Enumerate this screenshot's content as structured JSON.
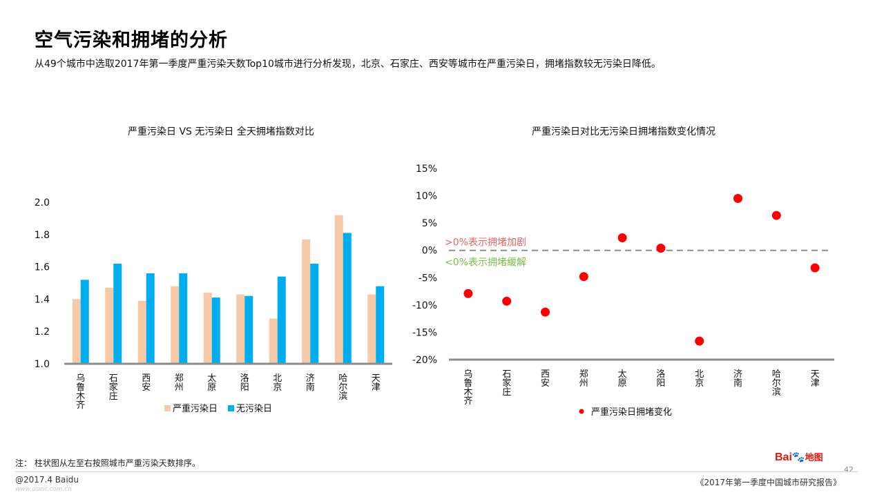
{
  "header": {
    "title": "空气污染和拥堵的分析",
    "subtitle": "从49个城市中选取2017年第一季度严重污染天数Top10城市进行分析发现，北京、石家庄、西安等城市在严重污染日，拥堵指数较无污染日降低。"
  },
  "colors": {
    "polluted": "#f6c9a9",
    "clean": "#00aeef",
    "dot": "#ff0000",
    "axis": "#8c8c8c",
    "up_note": "#e06666",
    "down_note": "#7cbd4a"
  },
  "chart_data": [
    {
      "type": "bar",
      "title": "严重污染日 VS 无污染日 全天拥堵指数对比",
      "categories": [
        "乌鲁木齐",
        "石家庄",
        "西安",
        "郑州",
        "太原",
        "洛阳",
        "北京",
        "济南",
        "哈尔滨",
        "天津"
      ],
      "series": [
        {
          "name": "严重污染日",
          "values": [
            1.4,
            1.47,
            1.39,
            1.48,
            1.44,
            1.43,
            1.28,
            1.77,
            1.92,
            1.43
          ]
        },
        {
          "name": "无污染日",
          "values": [
            1.52,
            1.62,
            1.56,
            1.56,
            1.41,
            1.42,
            1.54,
            1.62,
            1.81,
            1.48
          ]
        }
      ],
      "ylim": [
        1.0,
        2.0
      ],
      "yticks": [
        1.0,
        1.2,
        1.4,
        1.6,
        1.8,
        2.0
      ],
      "ytick_labels": [
        "1.0",
        "1.2",
        "1.4",
        "1.6",
        "1.8",
        "2.0"
      ],
      "legend_position": "bottom"
    },
    {
      "type": "scatter",
      "title": "严重污染日对比无污染日拥堵指数变化情况",
      "categories": [
        "乌鲁木齐",
        "石家庄",
        "西安",
        "郑州",
        "太原",
        "洛阳",
        "北京",
        "济南",
        "哈尔滨",
        "天津"
      ],
      "series": [
        {
          "name": "严重污染日拥堵变化",
          "values": [
            -7.9,
            -9.3,
            -11.3,
            -4.8,
            2.3,
            0.4,
            -16.6,
            9.5,
            6.4,
            -3.2
          ]
        }
      ],
      "ylim": [
        -20,
        15
      ],
      "yticks": [
        -20,
        -15,
        -10,
        -5,
        0,
        5,
        10,
        15
      ],
      "ytick_labels": [
        "-20%",
        "-15%",
        "-10%",
        "-5%",
        "0%",
        "5%",
        "10%",
        "15%"
      ],
      "annotations": [
        {
          "text": ">0%表示拥堵加剧",
          "color": "#e06666"
        },
        {
          "text": "<0%表示拥堵缓解",
          "color": "#7cbd4a"
        }
      ],
      "legend_position": "bottom"
    }
  ],
  "footer": {
    "note": "注： 柱状图从左至右按照城市严重污染天数排序。",
    "copyright": "@2017.4 Baidu",
    "report": "《2017年第一季度中国城市研究报告》",
    "page": "42",
    "logo_text": "Bai",
    "logo_map": "地图",
    "watermark": "www.useit.com.cn"
  }
}
